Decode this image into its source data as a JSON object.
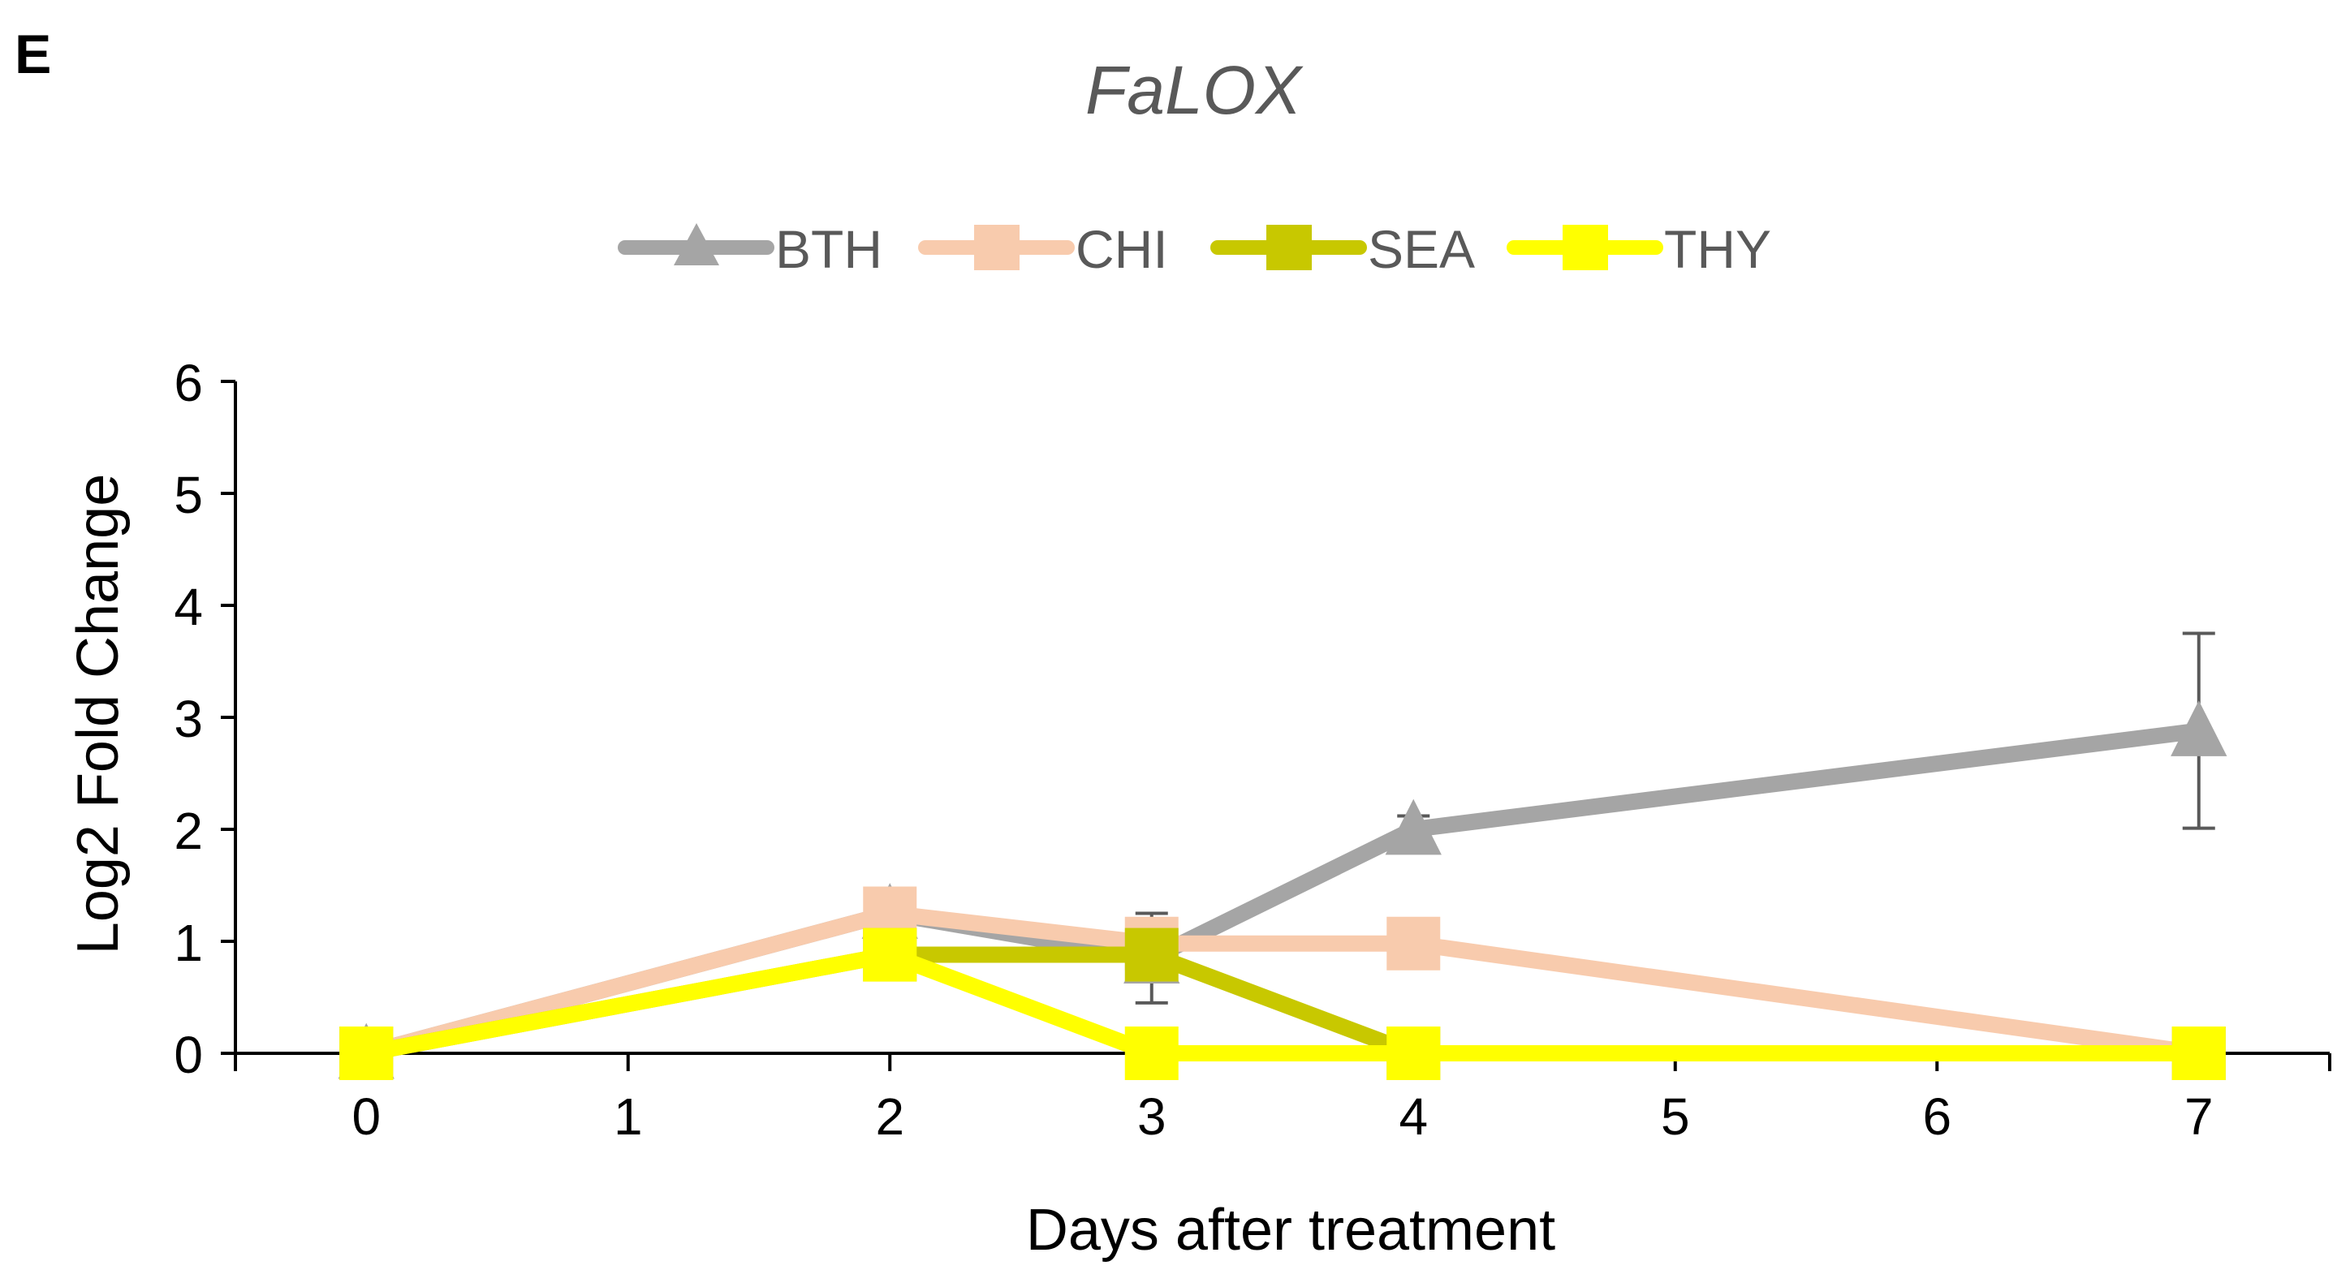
{
  "panel_letter": "E",
  "chart_data": {
    "type": "line",
    "title": "FaLOX",
    "xlabel": "Days after treatment",
    "ylabel": "Log2 Fold Change",
    "xlim": [
      -0.5,
      7.5
    ],
    "ylim": [
      0,
      6
    ],
    "xticks": [
      0,
      1,
      2,
      3,
      4,
      5,
      6,
      7
    ],
    "yticks": [
      0,
      1,
      2,
      3,
      4,
      5,
      6
    ],
    "grid": false,
    "legend_position": "top",
    "series": [
      {
        "name": "BTH",
        "color": "#A5A5A5",
        "marker": "triangle",
        "x": [
          0,
          2,
          3,
          4,
          7
        ],
        "values": [
          0,
          1.25,
          0.85,
          2.0,
          2.88
        ],
        "errors": [
          0,
          0.22,
          0.4,
          0.12,
          0.87
        ]
      },
      {
        "name": "CHI",
        "color": "#F8CBAD",
        "marker": "square",
        "x": [
          0,
          2,
          3,
          4,
          7
        ],
        "values": [
          0,
          1.25,
          0.98,
          0.98,
          0
        ],
        "errors": [
          0,
          0.08,
          0.05,
          0.05,
          0
        ]
      },
      {
        "name": "SEA",
        "color": "#C8C800",
        "marker": "square",
        "x": [
          0,
          2,
          3,
          4,
          7
        ],
        "values": [
          0,
          0.88,
          0.88,
          0,
          0
        ],
        "errors": [
          0,
          0,
          0.08,
          0,
          0
        ]
      },
      {
        "name": "THY",
        "color": "#FFFF00",
        "marker": "square",
        "x": [
          0,
          2,
          3,
          4,
          7
        ],
        "values": [
          0,
          0.88,
          0,
          0,
          0
        ],
        "errors": [
          0,
          0,
          0,
          0,
          0
        ]
      }
    ]
  }
}
